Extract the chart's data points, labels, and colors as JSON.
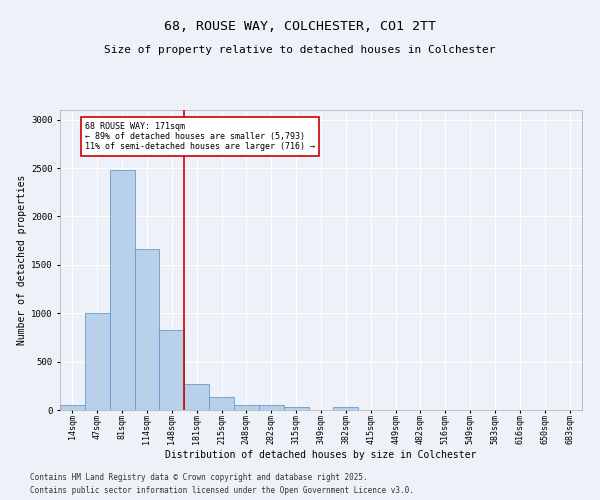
{
  "title1": "68, ROUSE WAY, COLCHESTER, CO1 2TT",
  "title2": "Size of property relative to detached houses in Colchester",
  "xlabel": "Distribution of detached houses by size in Colchester",
  "ylabel": "Number of detached properties",
  "categories": [
    "14sqm",
    "47sqm",
    "81sqm",
    "114sqm",
    "148sqm",
    "181sqm",
    "215sqm",
    "248sqm",
    "282sqm",
    "315sqm",
    "349sqm",
    "382sqm",
    "415sqm",
    "449sqm",
    "482sqm",
    "516sqm",
    "549sqm",
    "583sqm",
    "616sqm",
    "650sqm",
    "683sqm"
  ],
  "values": [
    50,
    1000,
    2480,
    1660,
    830,
    270,
    130,
    55,
    55,
    35,
    0,
    35,
    0,
    0,
    0,
    0,
    0,
    0,
    0,
    0,
    0
  ],
  "bar_color": "#b8d0ea",
  "bar_edge_color": "#6699cc",
  "vline_color": "#cc0000",
  "annotation_text": "68 ROUSE WAY: 171sqm\n← 89% of detached houses are smaller (5,793)\n11% of semi-detached houses are larger (716) →",
  "annotation_box_color": "#cc0000",
  "ylim": [
    0,
    3100
  ],
  "background_color": "#eef2f8",
  "plot_bg_color": "#eef2f8",
  "grid_color": "#ffffff",
  "footnote1": "Contains HM Land Registry data © Crown copyright and database right 2025.",
  "footnote2": "Contains public sector information licensed under the Open Government Licence v3.0.",
  "title1_fontsize": 9.5,
  "title2_fontsize": 8,
  "tick_fontsize": 6,
  "ylabel_fontsize": 7,
  "xlabel_fontsize": 7,
  "footnote_fontsize": 5.5
}
